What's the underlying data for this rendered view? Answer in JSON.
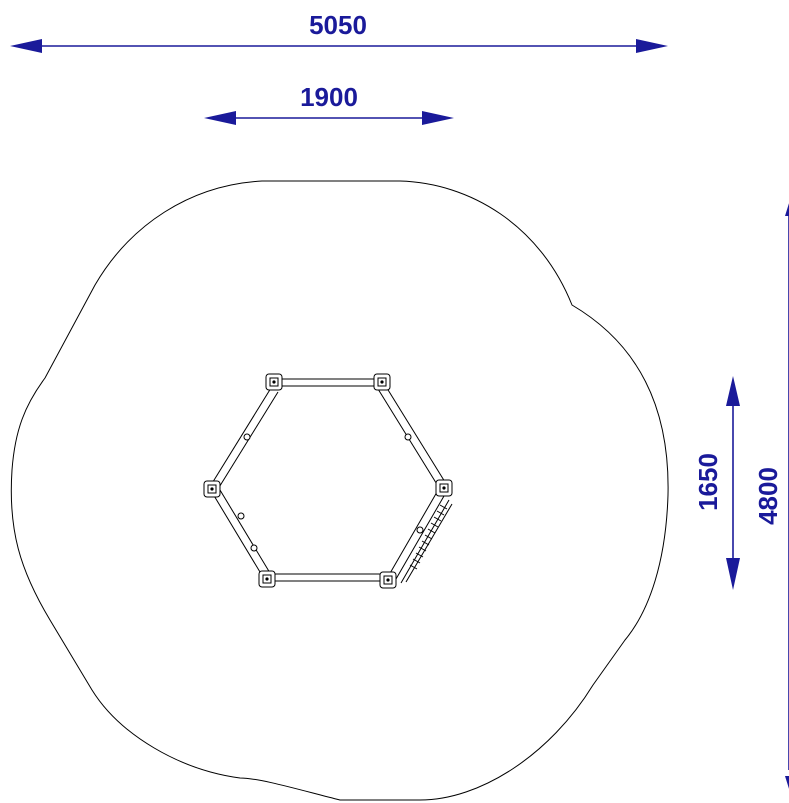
{
  "dimensions": {
    "overall_width": "5050",
    "frame_width": "1900",
    "frame_depth": "1650",
    "overall_depth": "4800"
  },
  "colors": {
    "dimension": "#1a1a9a",
    "outline": "#000000",
    "background": "#ffffff"
  }
}
